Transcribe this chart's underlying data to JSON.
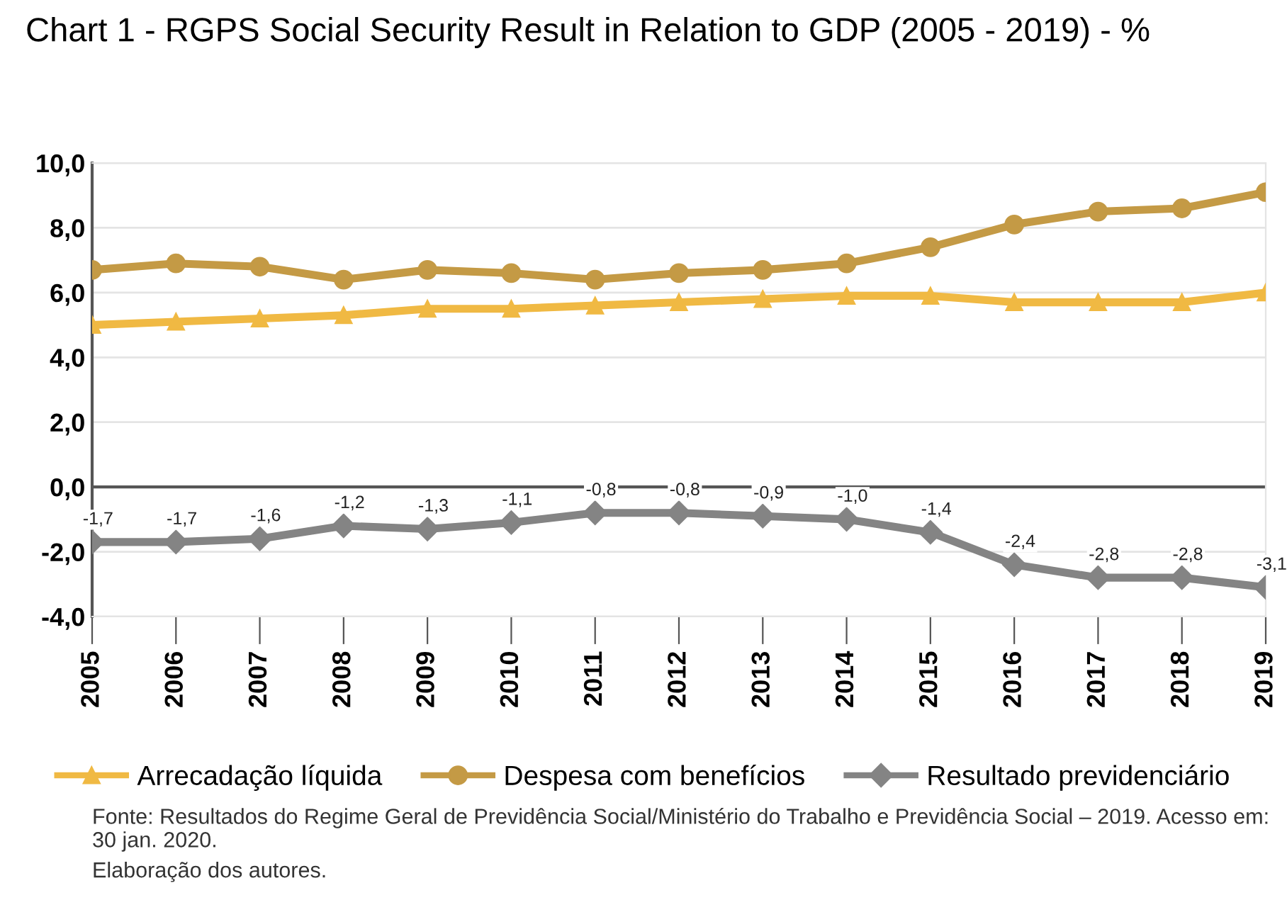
{
  "chart_data": {
    "type": "line",
    "title": "Chart 1 - RGPS Social Security Result in Relation to GDP (2005 - 2019) - %",
    "categories": [
      "2005",
      "2006",
      "2007",
      "2008",
      "2009",
      "2010",
      "2011",
      "2012",
      "2013",
      "2014",
      "2015",
      "2016",
      "2017",
      "2018",
      "2019"
    ],
    "series": [
      {
        "name": "Arrecadação líquida",
        "color": "#f0b943",
        "marker": "triangle",
        "values": [
          5.0,
          5.1,
          5.2,
          5.3,
          5.5,
          5.5,
          5.6,
          5.7,
          5.8,
          5.9,
          5.9,
          5.7,
          5.7,
          5.7,
          6.0
        ]
      },
      {
        "name": "Despesa com benefícios",
        "color": "#c49a45",
        "marker": "circle",
        "values": [
          6.7,
          6.9,
          6.8,
          6.4,
          6.7,
          6.6,
          6.4,
          6.6,
          6.7,
          6.9,
          7.4,
          8.1,
          8.5,
          8.6,
          9.1
        ]
      },
      {
        "name": "Resultado previdenciário",
        "color": "#848484",
        "marker": "diamond",
        "values": [
          -1.7,
          -1.7,
          -1.6,
          -1.2,
          -1.3,
          -1.1,
          -0.8,
          -0.8,
          -0.9,
          -1.0,
          -1.4,
          -2.4,
          -2.8,
          -2.8,
          -3.1
        ],
        "value_labels": [
          "-1,7",
          "-1,7",
          "-1,6",
          "-1,2",
          "-1,3",
          "-1,1",
          "-0,8",
          "-0,8",
          "-0,9",
          "-1,0",
          "-1,4",
          "-2,4",
          "-2,8",
          "-2,8",
          "-3,1"
        ]
      }
    ],
    "ylim": [
      -4,
      10
    ],
    "yticks": [
      {
        "value": -4,
        "label": "-4,0"
      },
      {
        "value": -2,
        "label": "-2,0"
      },
      {
        "value": 0,
        "label": "0,0"
      },
      {
        "value": 2,
        "label": "2,0"
      },
      {
        "value": 4,
        "label": "4,0"
      },
      {
        "value": 6,
        "label": "6,0"
      },
      {
        "value": 8,
        "label": "8,0"
      },
      {
        "value": 10,
        "label": "10,0"
      }
    ],
    "ref_lines": [
      {
        "axis": "y",
        "value": 0,
        "color": "#555555"
      }
    ],
    "grid": "y",
    "legend": "bottom",
    "line_style": "solid",
    "annotations": [
      "Fonte: Resultados do Regime Geral de Previdência Social/Ministério do Trabalho e Previdência Social – 2019. Acesso em: 30 jan. 2020.",
      "Elaboração dos autores."
    ]
  }
}
